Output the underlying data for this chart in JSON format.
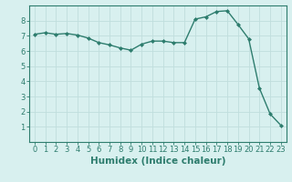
{
  "x": [
    0,
    1,
    2,
    3,
    4,
    5,
    6,
    7,
    8,
    9,
    10,
    11,
    12,
    13,
    14,
    15,
    16,
    17,
    18,
    19,
    20,
    21,
    22,
    23
  ],
  "y": [
    7.1,
    7.2,
    7.1,
    7.15,
    7.05,
    6.85,
    6.55,
    6.4,
    6.2,
    6.05,
    6.45,
    6.65,
    6.65,
    6.55,
    6.55,
    8.1,
    8.25,
    8.6,
    8.65,
    7.75,
    6.8,
    3.55,
    1.85,
    1.1
  ],
  "line_color": "#2e7d6e",
  "marker": "D",
  "marker_size": 2,
  "bg_color": "#d8f0ef",
  "grid_color": "#c0dedd",
  "axis_color": "#2e7d6e",
  "xlabel": "Humidex (Indice chaleur)",
  "xlim": [
    -0.5,
    23.5
  ],
  "ylim": [
    0,
    9
  ],
  "yticks": [
    1,
    2,
    3,
    4,
    5,
    6,
    7,
    8
  ],
  "xticks": [
    0,
    1,
    2,
    3,
    4,
    5,
    6,
    7,
    8,
    9,
    10,
    11,
    12,
    13,
    14,
    15,
    16,
    17,
    18,
    19,
    20,
    21,
    22,
    23
  ],
  "tick_fontsize": 6,
  "xlabel_fontsize": 7.5
}
